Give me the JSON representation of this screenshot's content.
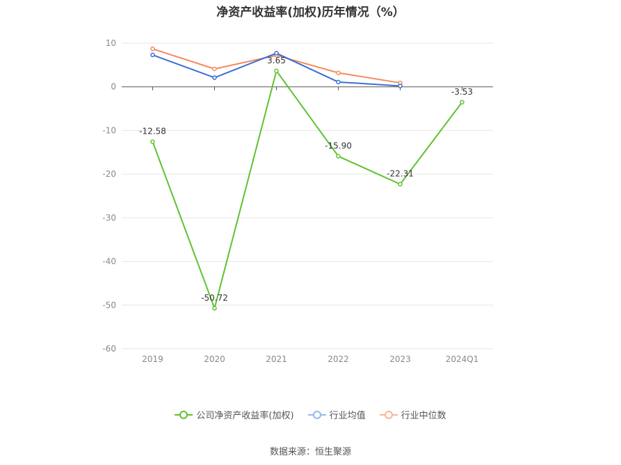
{
  "chart_data": {
    "type": "line",
    "title": "净资产收益率(加权)历年情况（%）",
    "categories": [
      "2019",
      "2020",
      "2021",
      "2022",
      "2023",
      "2024Q1"
    ],
    "y_ticks": [
      "10",
      "0",
      "-10",
      "-20",
      "-30",
      "-40",
      "-50",
      "-60"
    ],
    "ylim": [
      -60,
      10
    ],
    "grid": true,
    "legend_position": "bottom",
    "series": [
      {
        "name": "公司净资产收益率(加权)",
        "color": "#5dc22f",
        "values": [
          -12.58,
          -50.72,
          3.65,
          -15.9,
          -22.31,
          -3.53
        ],
        "labels": [
          "-12.58",
          "-50.72",
          "3.65",
          "-15.90",
          "-22.31",
          "-3.53"
        ]
      },
      {
        "name": "行业均值",
        "color": "#3a6fd6",
        "values": [
          7.3,
          2.1,
          7.7,
          1.1,
          0.2,
          null
        ]
      },
      {
        "name": "行业中位数",
        "color": "#f48a5e",
        "values": [
          8.7,
          4.1,
          7.2,
          3.2,
          0.9,
          null
        ]
      }
    ]
  },
  "source": "数据来源：恒生聚源"
}
